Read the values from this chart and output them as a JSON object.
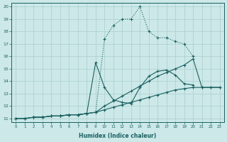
{
  "xlabel": "Humidex (Indice chaleur)",
  "bg_color": "#cce8e8",
  "grid_color": "#aacece",
  "line_color": "#1a6060",
  "xlim_min": -0.5,
  "xlim_max": 23.5,
  "ylim_min": 10.7,
  "ylim_max": 20.3,
  "xticks": [
    0,
    1,
    2,
    3,
    4,
    5,
    6,
    7,
    8,
    9,
    10,
    11,
    12,
    13,
    14,
    15,
    16,
    17,
    18,
    19,
    20,
    21,
    22,
    23
  ],
  "yticks": [
    11,
    12,
    13,
    14,
    15,
    16,
    17,
    18,
    19,
    20
  ],
  "series": [
    {
      "x": [
        0,
        1,
        2,
        3,
        4,
        5,
        6,
        7,
        8,
        9,
        10,
        11,
        12,
        13,
        14,
        15,
        16,
        17,
        18,
        19,
        20,
        21,
        22,
        23
      ],
      "y": [
        11,
        11,
        11.1,
        11.1,
        11.2,
        11.2,
        11.3,
        11.3,
        11.4,
        11.5,
        11.7,
        11.9,
        12.1,
        12.3,
        12.5,
        12.7,
        12.9,
        13.1,
        13.3,
        13.4,
        13.5,
        13.5,
        13.5,
        13.5
      ],
      "style": "solid"
    },
    {
      "x": [
        0,
        1,
        2,
        3,
        4,
        5,
        6,
        7,
        8,
        9,
        10,
        11,
        12,
        13,
        14,
        15,
        16,
        17,
        18,
        19,
        20,
        21,
        22,
        23
      ],
      "y": [
        11,
        11,
        11.1,
        11.1,
        11.2,
        11.2,
        11.3,
        11.3,
        11.4,
        11.5,
        12.0,
        12.4,
        12.8,
        13.2,
        13.6,
        14.0,
        14.4,
        14.7,
        15.0,
        15.3,
        15.8,
        13.5,
        13.5,
        13.5
      ],
      "style": "solid"
    },
    {
      "x": [
        0,
        1,
        2,
        3,
        4,
        5,
        6,
        7,
        8,
        9,
        10,
        11,
        12,
        13,
        14,
        15,
        16,
        17,
        18,
        19,
        20,
        21,
        22,
        23
      ],
      "y": [
        11,
        11,
        11.1,
        11.1,
        11.2,
        11.2,
        11.3,
        11.3,
        11.4,
        11.5,
        17.4,
        18.5,
        19.0,
        19.0,
        20.0,
        18.0,
        17.5,
        17.5,
        17.2,
        17.0,
        16.0,
        null,
        null,
        null
      ],
      "style": "dotted"
    },
    {
      "x": [
        2,
        3,
        4,
        5,
        6,
        7,
        8,
        9,
        10,
        11,
        12,
        13,
        14,
        15,
        16,
        17,
        18,
        19,
        20,
        21,
        22,
        23
      ],
      "y": [
        11.1,
        11.1,
        11.2,
        11.2,
        11.3,
        11.3,
        11.4,
        15.5,
        13.5,
        12.5,
        12.3,
        12.2,
        13.5,
        14.4,
        14.8,
        14.9,
        14.5,
        13.8,
        13.7,
        null,
        null,
        null
      ],
      "style": "solid"
    }
  ]
}
